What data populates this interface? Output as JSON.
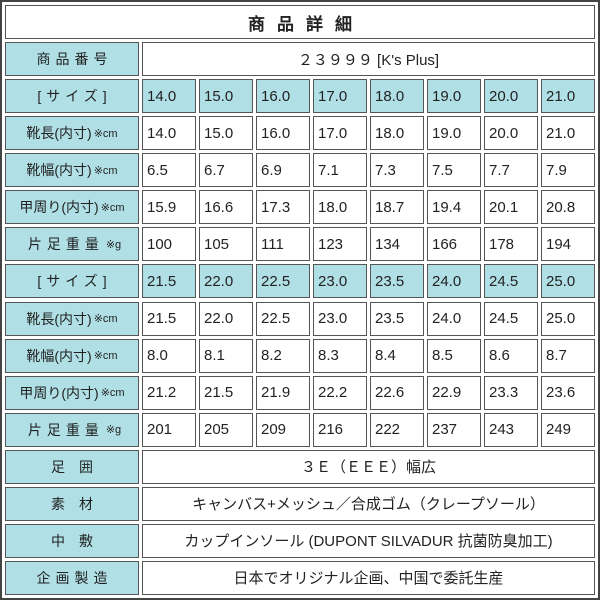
{
  "title": "商品詳細",
  "product_number": {
    "label": "商品番号",
    "value": "２３９９９ [K's Plus]"
  },
  "size_blocks": [
    {
      "size_row": {
        "label": "[サイズ]",
        "values": [
          "14.0",
          "15.0",
          "16.0",
          "17.0",
          "18.0",
          "19.0",
          "20.0",
          "21.0"
        ]
      },
      "rows": [
        {
          "label": "靴長(内寸)",
          "unit": "※cm",
          "values": [
            "14.0",
            "15.0",
            "16.0",
            "17.0",
            "18.0",
            "19.0",
            "20.0",
            "21.0"
          ]
        },
        {
          "label": "靴幅(内寸)",
          "unit": "※cm",
          "values": [
            "6.5",
            "6.7",
            "6.9",
            "7.1",
            "7.3",
            "7.5",
            "7.7",
            "7.9"
          ]
        },
        {
          "label": "甲周り(内寸)",
          "unit": "※cm",
          "values": [
            "15.9",
            "16.6",
            "17.3",
            "18.0",
            "18.7",
            "19.4",
            "20.1",
            "20.8"
          ]
        },
        {
          "label": "片足重量",
          "unit": "※g",
          "values": [
            "100",
            "105",
            "111",
            "123",
            "134",
            "166",
            "178",
            "194"
          ]
        }
      ]
    },
    {
      "size_row": {
        "label": "[サイズ]",
        "values": [
          "21.5",
          "22.0",
          "22.5",
          "23.0",
          "23.5",
          "24.0",
          "24.5",
          "25.0"
        ]
      },
      "rows": [
        {
          "label": "靴長(内寸)",
          "unit": "※cm",
          "values": [
            "21.5",
            "22.0",
            "22.5",
            "23.0",
            "23.5",
            "24.0",
            "24.5",
            "25.0"
          ]
        },
        {
          "label": "靴幅(内寸)",
          "unit": "※cm",
          "values": [
            "8.0",
            "8.1",
            "8.2",
            "8.3",
            "8.4",
            "8.5",
            "8.6",
            "8.7"
          ]
        },
        {
          "label": "甲周り(内寸)",
          "unit": "※cm",
          "values": [
            "21.2",
            "21.5",
            "21.9",
            "22.2",
            "22.6",
            "22.9",
            "23.3",
            "23.6"
          ]
        },
        {
          "label": "片足重量",
          "unit": "※g",
          "values": [
            "201",
            "205",
            "209",
            "216",
            "222",
            "237",
            "243",
            "249"
          ]
        }
      ]
    }
  ],
  "info_rows": [
    {
      "label": "足囲",
      "value": "３Ｅ（ＥＥＥ）幅広"
    },
    {
      "label": "素材",
      "value": "キャンバス+メッシュ／合成ゴム（クレープソール）"
    },
    {
      "label": "中敷",
      "value": "カップインソール (DUPONT SILVADUR 抗菌防臭加工)"
    },
    {
      "label": "企画製造",
      "value": "日本でオリジナル企画、中国で委託生産"
    }
  ],
  "colors": {
    "cell_bg": "#B0E0E6",
    "border": "#555555",
    "outer_border": "#444444",
    "text": "#222222"
  }
}
